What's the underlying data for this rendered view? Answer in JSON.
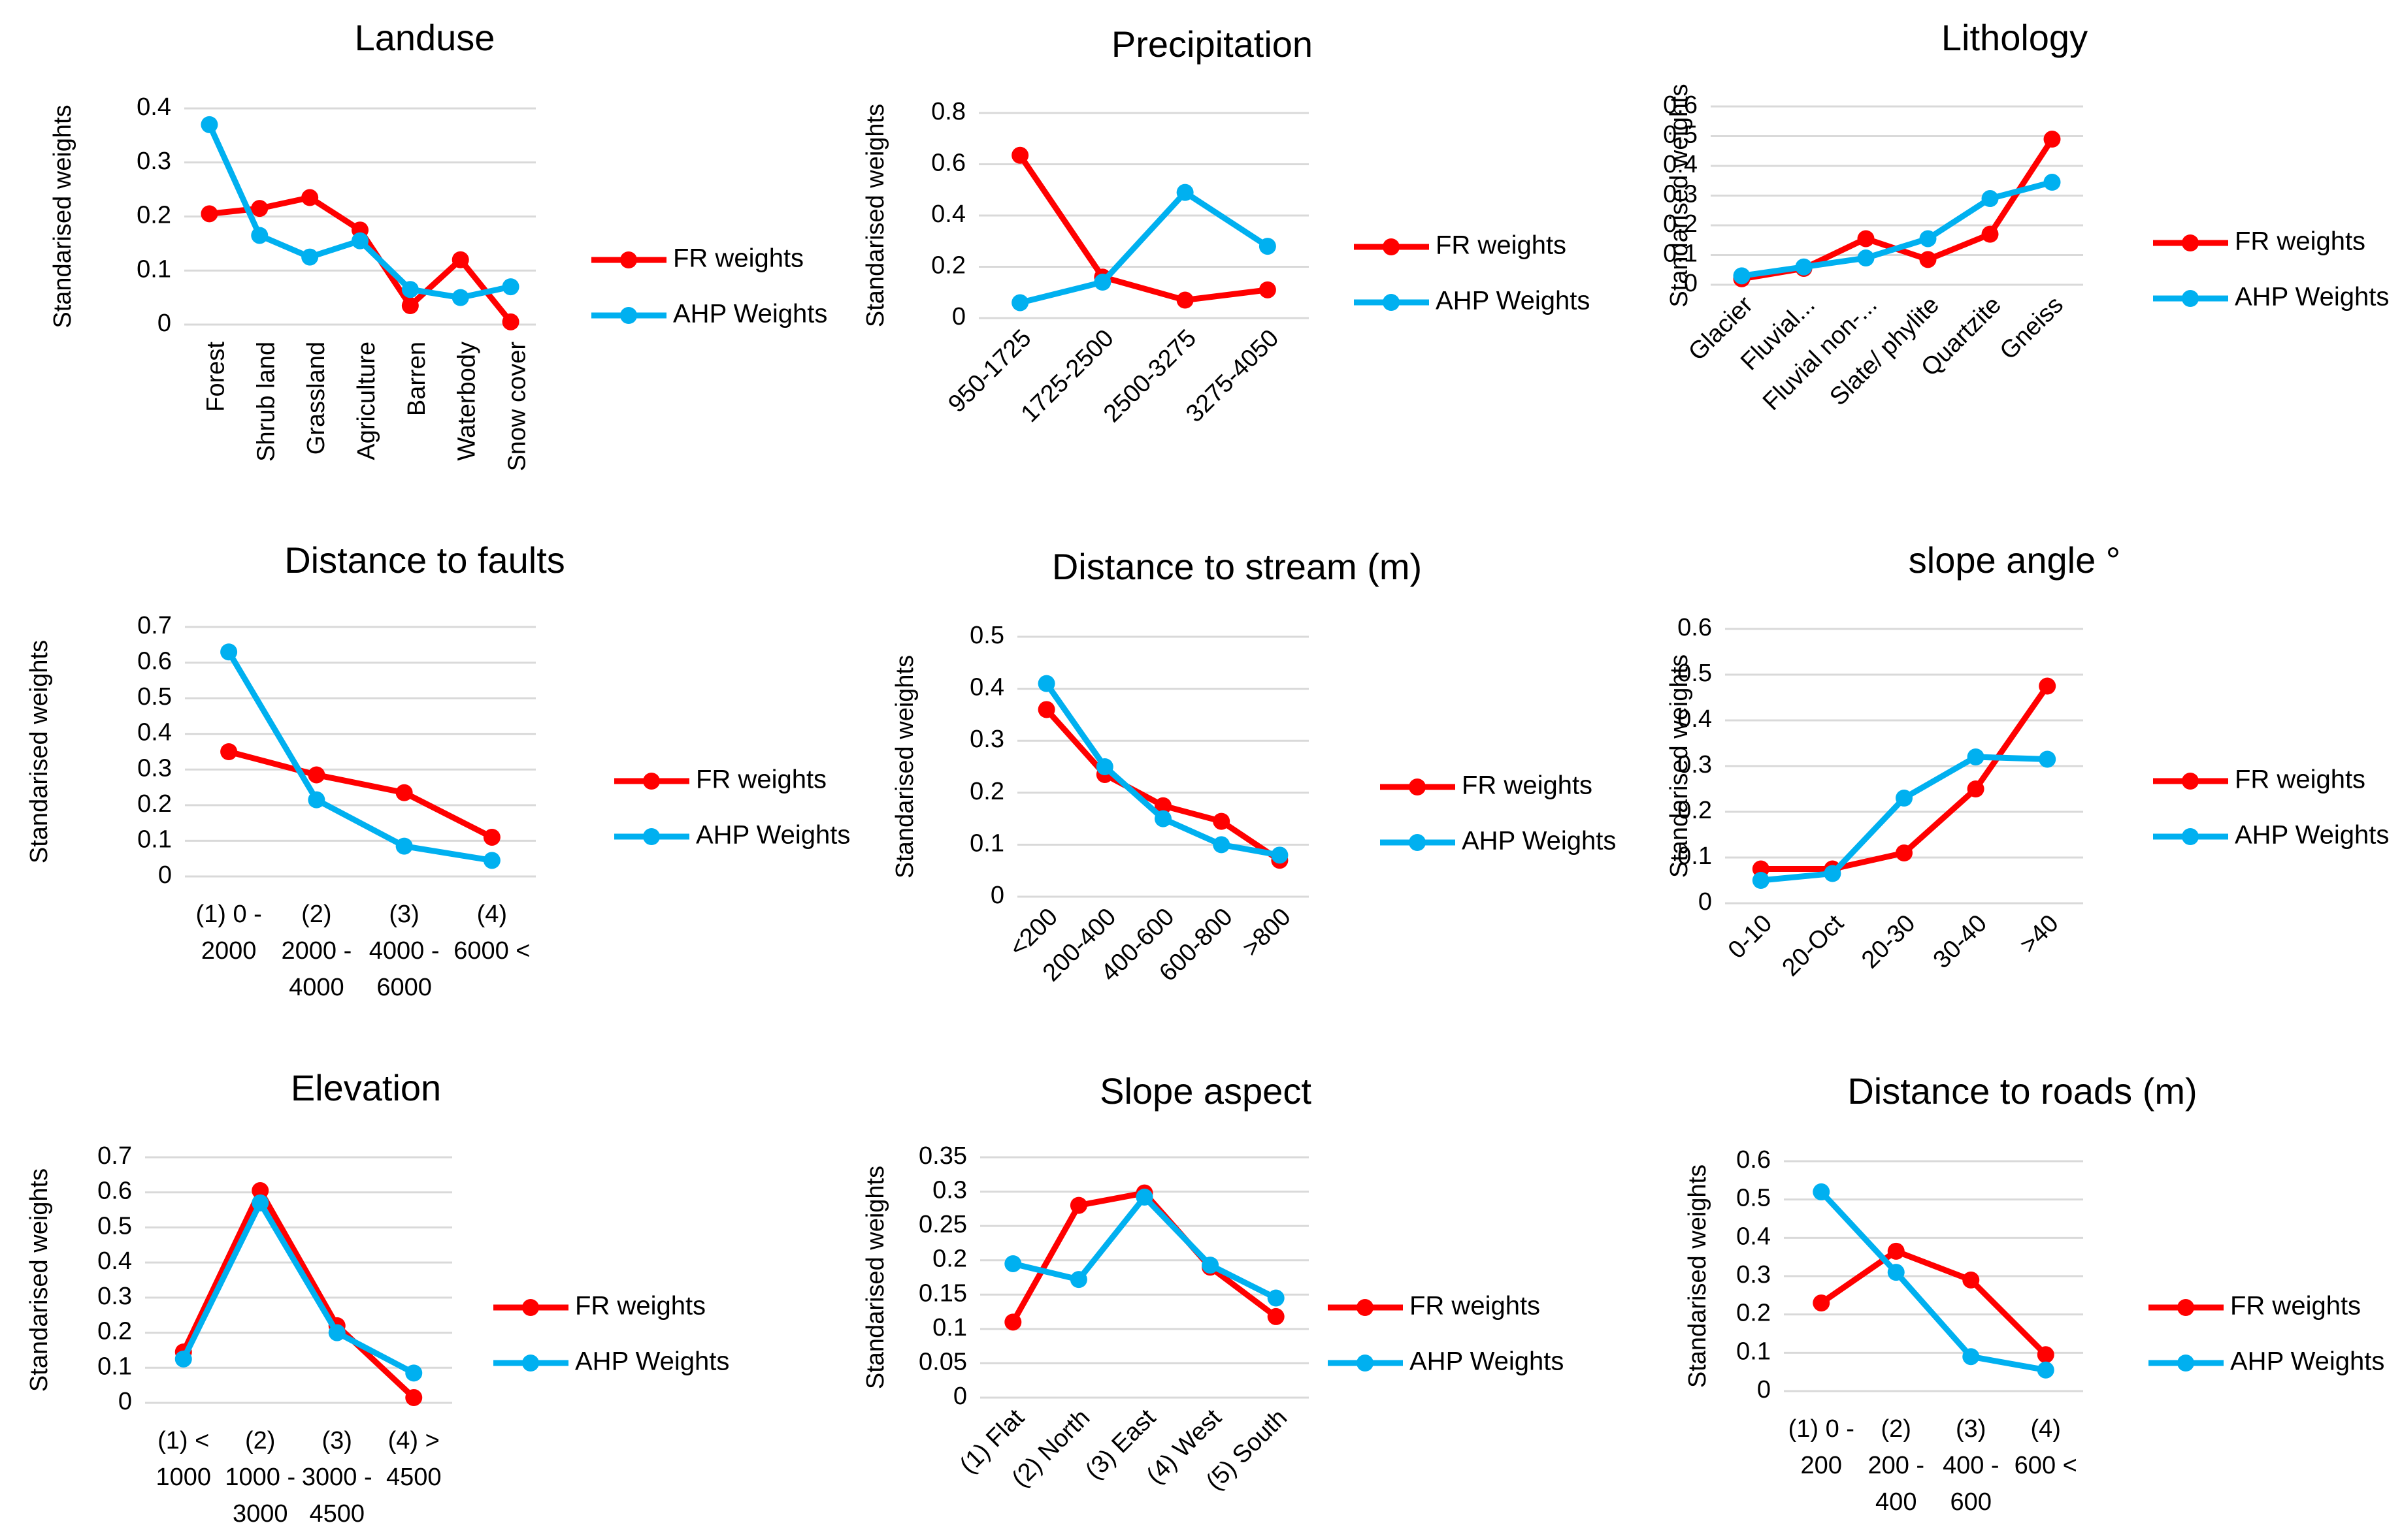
{
  "series_names": [
    "FR weights",
    "AHP Weights"
  ],
  "colors": {
    "fr": "#ff0000",
    "ahp": "#00b0f0",
    "grid": "#d9d9d9",
    "text": "#000000"
  },
  "chart_data": [
    {
      "type": "line",
      "title": "Landuse",
      "ylabel": "Standarised weights",
      "categories": [
        "Forest",
        "Shrub land",
        "Grassland",
        "Agriculture",
        "Barren",
        "Waterbody",
        "Snow cover"
      ],
      "ylim": [
        0,
        0.4
      ],
      "ystep": 0.1,
      "yticks": [
        "0",
        "0.1",
        "0.2",
        "0.3",
        "0.4"
      ],
      "rotate_labels": true,
      "series": [
        {
          "name": "FR weights",
          "values": [
            0.205,
            0.215,
            0.235,
            0.175,
            0.035,
            0.12,
            0.005
          ]
        },
        {
          "name": "AHP Weights",
          "values": [
            0.37,
            0.165,
            0.125,
            0.155,
            0.065,
            0.05,
            0.07
          ]
        }
      ]
    },
    {
      "type": "line",
      "title": "Precipitation",
      "ylabel": "Standarised weights",
      "categories": [
        "950-1725",
        "1725-2500",
        "2500-3275",
        "3275-4050"
      ],
      "ylim": [
        0,
        0.8
      ],
      "ystep": 0.2,
      "yticks": [
        "0",
        "0.2",
        "0.4",
        "0.6",
        "0.8"
      ],
      "rotate_labels": true,
      "series": [
        {
          "name": "FR weights",
          "values": [
            0.635,
            0.16,
            0.07,
            0.11
          ]
        },
        {
          "name": "AHP Weights",
          "values": [
            0.06,
            0.14,
            0.49,
            0.28
          ]
        }
      ]
    },
    {
      "type": "line",
      "title": "Lithology",
      "ylabel": "Standarised weights",
      "categories": [
        "Glacier",
        "Fluvial...",
        "Fluvial non-...",
        "Slate/ phylite",
        "Quartzite",
        "Gneiss"
      ],
      "ylim": [
        0,
        0.6
      ],
      "ystep": 0.1,
      "yticks": [
        "0",
        "0.1",
        "0.2",
        "0.3",
        "0.4",
        "0.5",
        "0.6"
      ],
      "rotate_labels": true,
      "series": [
        {
          "name": "FR weights",
          "values": [
            0.02,
            0.055,
            0.155,
            0.085,
            0.17,
            0.49
          ]
        },
        {
          "name": "AHP Weights",
          "values": [
            0.03,
            0.06,
            0.09,
            0.155,
            0.29,
            0.345
          ]
        }
      ]
    },
    {
      "type": "line",
      "title": "Distance to faults",
      "ylabel": "Standarised weights",
      "categories": [
        [
          "(1) 0 -",
          "2000"
        ],
        [
          "(2)",
          "2000 -",
          "4000"
        ],
        [
          "(3)",
          "4000 -",
          "6000"
        ],
        [
          "(4)",
          "6000 <"
        ]
      ],
      "ylim": [
        0,
        0.7
      ],
      "ystep": 0.1,
      "yticks": [
        "0",
        "0.1",
        "0.2",
        "0.3",
        "0.4",
        "0.5",
        "0.6",
        "0.7"
      ],
      "rotate_labels": false,
      "series": [
        {
          "name": "FR weights",
          "values": [
            0.35,
            0.285,
            0.235,
            0.11
          ]
        },
        {
          "name": "AHP Weights",
          "values": [
            0.63,
            0.215,
            0.085,
            0.045
          ]
        }
      ]
    },
    {
      "type": "line",
      "title": "Distance to stream (m)",
      "ylabel": "Standarised weights",
      "categories": [
        "<200",
        "200-400",
        "400-600",
        "600-800",
        ">800"
      ],
      "ylim": [
        0,
        0.5
      ],
      "ystep": 0.1,
      "yticks": [
        "0",
        "0.1",
        "0.2",
        "0.3",
        "0.4",
        "0.5"
      ],
      "rotate_labels": true,
      "series": [
        {
          "name": "FR weights",
          "values": [
            0.36,
            0.235,
            0.175,
            0.145,
            0.07
          ]
        },
        {
          "name": "AHP Weights",
          "values": [
            0.41,
            0.25,
            0.15,
            0.1,
            0.08
          ]
        }
      ]
    },
    {
      "type": "line",
      "title": "slope angle °",
      "ylabel": "Standarised weights",
      "categories": [
        "0-10",
        "20-Oct",
        "20-30",
        "30-40",
        ">40"
      ],
      "ylim": [
        0,
        0.6
      ],
      "ystep": 0.1,
      "yticks": [
        "0",
        "0.1",
        "0.2",
        "0.3",
        "0.4",
        "0.5",
        "0.6"
      ],
      "rotate_labels": true,
      "series": [
        {
          "name": "FR weights",
          "values": [
            0.075,
            0.075,
            0.11,
            0.25,
            0.475
          ]
        },
        {
          "name": "AHP Weights",
          "values": [
            0.05,
            0.065,
            0.23,
            0.32,
            0.315
          ]
        }
      ]
    },
    {
      "type": "line",
      "title": "Elevation",
      "ylabel": "Standarised weights",
      "categories": [
        [
          "(1) <",
          "1000"
        ],
        [
          "(2)",
          "1000 -",
          "3000"
        ],
        [
          "(3)",
          "3000 -",
          "4500"
        ],
        [
          "(4) >",
          "4500"
        ]
      ],
      "ylim": [
        0,
        0.7
      ],
      "ystep": 0.1,
      "yticks": [
        "0",
        "0.1",
        "0.2",
        "0.3",
        "0.4",
        "0.5",
        "0.6",
        "0.7"
      ],
      "rotate_labels": false,
      "series": [
        {
          "name": "FR weights",
          "values": [
            0.145,
            0.605,
            0.22,
            0.015
          ]
        },
        {
          "name": "AHP Weights",
          "values": [
            0.125,
            0.57,
            0.2,
            0.085
          ]
        }
      ]
    },
    {
      "type": "line",
      "title": "Slope aspect",
      "ylabel": "Standarised weights",
      "categories": [
        "(1) Flat",
        "(2) North",
        "(3) East",
        "(4) West",
        "(5) South"
      ],
      "ylim": [
        0,
        0.35
      ],
      "ystep": 0.05,
      "yticks": [
        "0",
        "0.05",
        "0.1",
        "0.15",
        "0.2",
        "0.25",
        "0.3",
        "0.35"
      ],
      "rotate_labels": true,
      "series": [
        {
          "name": "FR weights",
          "values": [
            0.11,
            0.28,
            0.298,
            0.19,
            0.118
          ]
        },
        {
          "name": "AHP Weights",
          "values": [
            0.195,
            0.172,
            0.292,
            0.193,
            0.145
          ]
        }
      ]
    },
    {
      "type": "line",
      "title": "Distance to roads (m)",
      "ylabel": "Standarised weights",
      "categories": [
        [
          "(1) 0 -",
          "200"
        ],
        [
          "(2)",
          "200 -",
          "400"
        ],
        [
          "(3)",
          "400 -",
          "600"
        ],
        [
          "(4)",
          "600 <"
        ]
      ],
      "ylim": [
        0,
        0.6
      ],
      "ystep": 0.1,
      "yticks": [
        "0",
        "0.1",
        "0.2",
        "0.3",
        "0.4",
        "0.5",
        "0.6"
      ],
      "rotate_labels": false,
      "series": [
        {
          "name": "FR weights",
          "values": [
            0.23,
            0.365,
            0.29,
            0.095
          ]
        },
        {
          "name": "AHP Weights",
          "values": [
            0.52,
            0.31,
            0.09,
            0.055
          ]
        }
      ]
    }
  ]
}
